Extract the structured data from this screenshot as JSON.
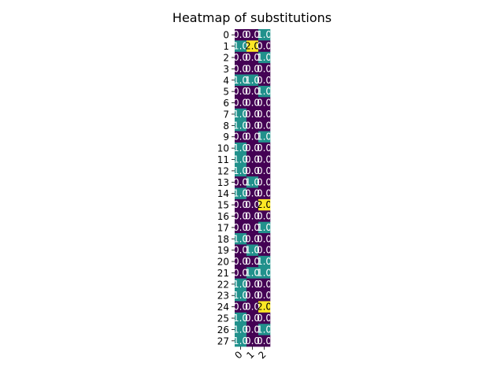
{
  "chart_data": {
    "type": "heatmap",
    "title": "Heatmap of substitutions",
    "xlabel": "",
    "ylabel": "",
    "x_tick_labels": [
      "0",
      "1",
      "2"
    ],
    "y_tick_labels": [
      "0",
      "1",
      "2",
      "3",
      "4",
      "5",
      "6",
      "7",
      "8",
      "9",
      "10",
      "11",
      "12",
      "13",
      "14",
      "15",
      "16",
      "17",
      "18",
      "19",
      "20",
      "21",
      "22",
      "23",
      "24",
      "25",
      "26",
      "27"
    ],
    "values": [
      [
        0,
        0,
        1
      ],
      [
        1,
        2,
        0
      ],
      [
        0,
        0,
        1
      ],
      [
        0,
        0,
        0
      ],
      [
        1,
        1,
        0
      ],
      [
        0,
        0,
        1
      ],
      [
        0,
        0,
        0
      ],
      [
        1,
        0,
        0
      ],
      [
        1,
        0,
        0
      ],
      [
        0,
        0,
        1
      ],
      [
        1,
        0,
        0
      ],
      [
        1,
        0,
        0
      ],
      [
        1,
        0,
        0
      ],
      [
        0,
        1,
        0
      ],
      [
        1,
        0,
        0
      ],
      [
        0,
        0,
        2
      ],
      [
        0,
        0,
        0
      ],
      [
        0,
        0,
        1
      ],
      [
        1,
        0,
        0
      ],
      [
        0,
        1,
        0
      ],
      [
        0,
        0,
        1
      ],
      [
        0,
        1,
        1
      ],
      [
        1,
        0,
        0
      ],
      [
        1,
        0,
        0
      ],
      [
        0,
        0,
        2
      ],
      [
        1,
        0,
        0
      ],
      [
        1,
        0,
        1
      ],
      [
        1,
        0,
        0
      ]
    ],
    "annotation_format": "0.0",
    "colormap": "viridis",
    "value_range": [
      0,
      2
    ],
    "colors": {
      "low": "#440154",
      "mid": "#21918c",
      "high": "#fde725",
      "label_on_dark": "#ffffff",
      "label_on_light": "#000000"
    },
    "grid": false,
    "colorbar": false
  }
}
